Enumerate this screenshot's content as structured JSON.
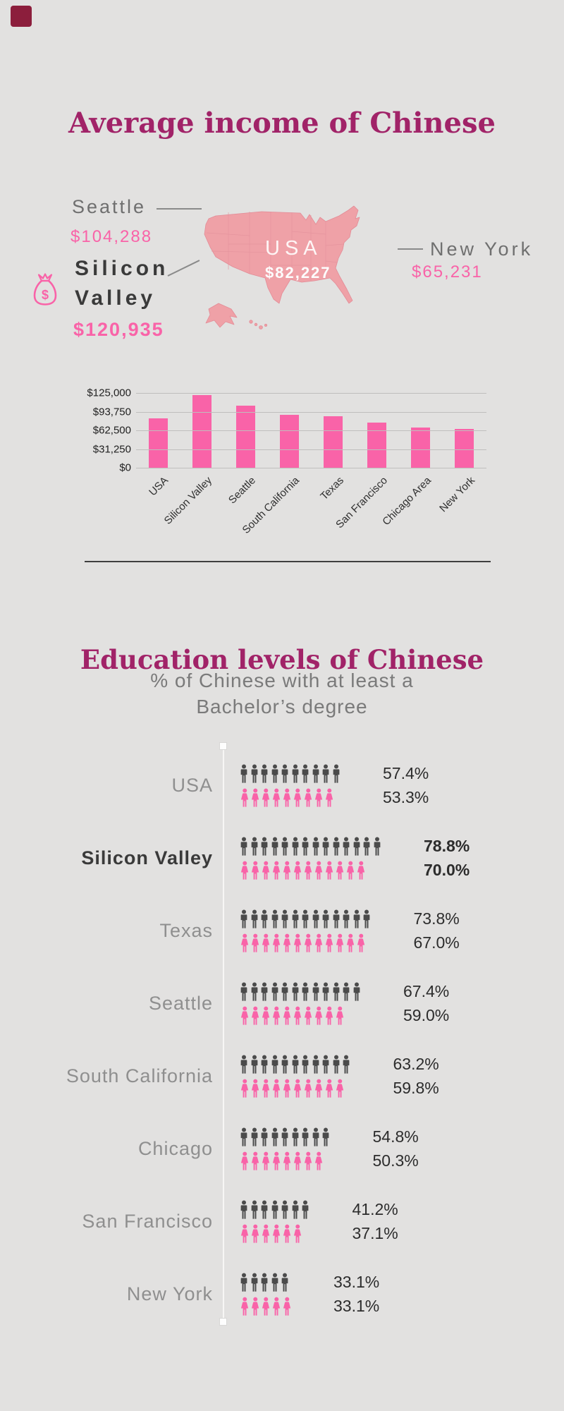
{
  "page": {
    "background": "#e2e1e0",
    "accent_magenta": "#a12368",
    "accent_pink": "#f963a8",
    "brand_square_color": "#8c1e3c"
  },
  "income_section": {
    "title": "Average income of Chinese",
    "map": {
      "fill_color": "#efa1a7",
      "usa_label": "USA",
      "usa_value": "$82,227",
      "seattle_label": "Seattle",
      "seattle_value": "$104,288",
      "silicon_line1": "Silicon",
      "silicon_line2": "Valley",
      "silicon_value": "$120,935",
      "newyork_label": "New York",
      "newyork_value": "$65,231"
    }
  },
  "education_section": {
    "title": "Education levels of Chinese",
    "subtitle_line1": "% of Chinese with at least a",
    "subtitle_line2": "Bachelor’s degree"
  },
  "chart_data": [
    {
      "type": "bar",
      "title": "Average income of Chinese",
      "categories": [
        "USA",
        "Silicon Valley",
        "Seattle",
        "South California",
        "Texas",
        "San Francisco",
        "Chicago Area",
        "New York"
      ],
      "values": [
        82227,
        120935,
        104288,
        88400,
        86500,
        75900,
        67600,
        65231
      ],
      "xlabel": "",
      "ylabel": "",
      "ylim": [
        0,
        125000
      ],
      "yticks": [
        "$125,000",
        "$93,750",
        "$62,500",
        "$31,250",
        "$0"
      ],
      "grid": true,
      "legend": "none",
      "bar_color": "#f963a8"
    },
    {
      "type": "pictogram",
      "title": "Education levels of Chinese",
      "subtitle": "% of Chinese with at least a Bachelor’s degree",
      "series_names": [
        "Male",
        "Female"
      ],
      "male_color": "#4b4b4b",
      "female_color": "#f963a8",
      "rows": [
        {
          "label": "USA",
          "male_pct": "57.4%",
          "female_pct": "53.3%",
          "male_icons": 10,
          "female_icons": 9,
          "bold": false
        },
        {
          "label": "Silicon Valley",
          "male_pct": "78.8%",
          "female_pct": "70.0%",
          "male_icons": 14,
          "female_icons": 12,
          "bold": true
        },
        {
          "label": "Texas",
          "male_pct": "73.8%",
          "female_pct": "67.0%",
          "male_icons": 13,
          "female_icons": 12,
          "bold": false
        },
        {
          "label": "Seattle",
          "male_pct": "67.4%",
          "female_pct": "59.0%",
          "male_icons": 12,
          "female_icons": 10,
          "bold": false
        },
        {
          "label": "South California",
          "male_pct": "63.2%",
          "female_pct": "59.8%",
          "male_icons": 11,
          "female_icons": 10,
          "bold": false
        },
        {
          "label": "Chicago",
          "male_pct": "54.8%",
          "female_pct": "50.3%",
          "male_icons": 9,
          "female_icons": 8,
          "bold": false
        },
        {
          "label": "San Francisco",
          "male_pct": "41.2%",
          "female_pct": "37.1%",
          "male_icons": 7,
          "female_icons": 6,
          "bold": false
        },
        {
          "label": "New York",
          "male_pct": "33.1%",
          "female_pct": "33.1%",
          "male_icons": 5,
          "female_icons": 5,
          "bold": false
        }
      ]
    }
  ]
}
